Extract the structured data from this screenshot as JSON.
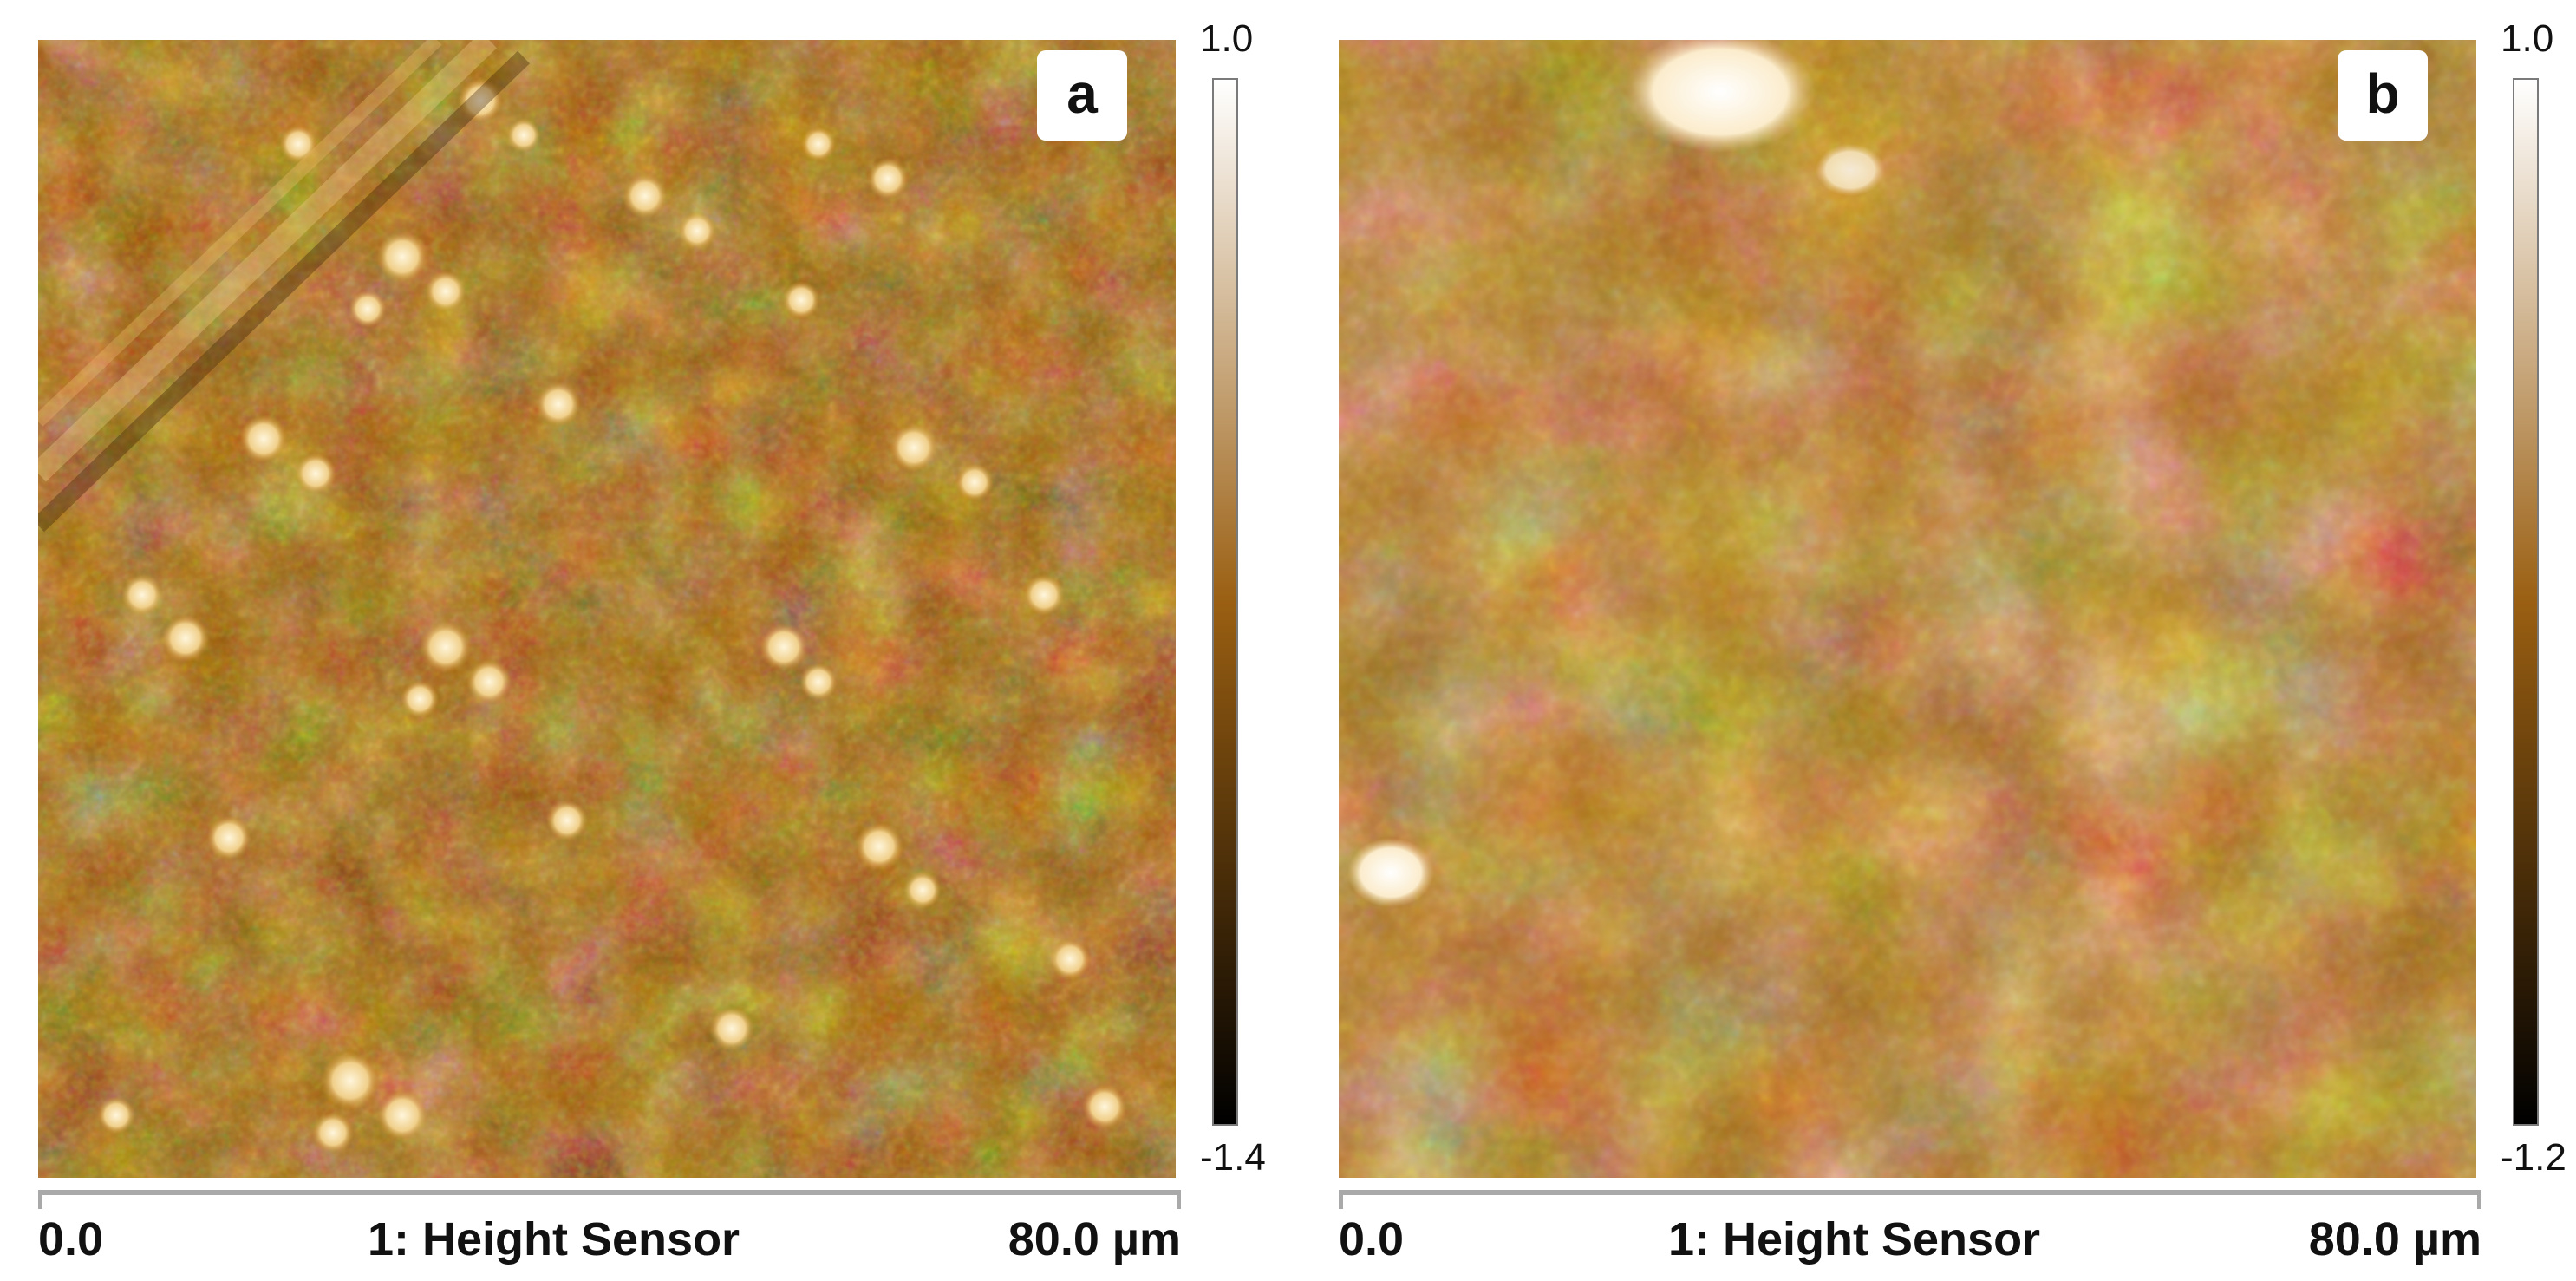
{
  "panels": [
    {
      "letter": "a",
      "scale_max": "1.0",
      "scale_min": "-1.4",
      "axis_start": "0.0",
      "axis_title": "1: Height Sensor",
      "axis_end": "80.0 µm"
    },
    {
      "letter": "b",
      "scale_max": "1.0",
      "scale_min": "-1.2",
      "axis_start": "0.0",
      "axis_title": "1: Height Sensor",
      "axis_end": "80.0 µm"
    }
  ],
  "colormap": {
    "low": "#000000",
    "mid": "#9a5f12",
    "high": "#ffffff"
  }
}
